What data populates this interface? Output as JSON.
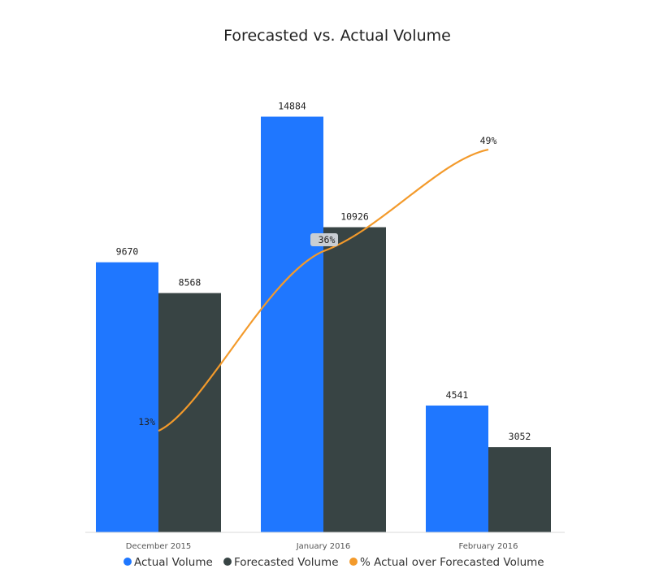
{
  "chart_data": {
    "type": "bar",
    "title": "Forecasted vs. Actual Volume",
    "categories": [
      "December 2015",
      "January 2016",
      "February 2016"
    ],
    "series": [
      {
        "name": "Actual Volume",
        "kind": "bar",
        "color": "#1f77ff",
        "values": [
          9670,
          14884,
          4541
        ],
        "labels": [
          "9670",
          "14884",
          "4541"
        ]
      },
      {
        "name": "Forecasted Volume",
        "kind": "bar",
        "color": "#384444",
        "values": [
          8568,
          10926,
          3052
        ],
        "labels": [
          "8568",
          "10926",
          "3052"
        ]
      },
      {
        "name": "% Actual over Forecasted Volume",
        "kind": "line",
        "color": "#f39a2b",
        "values": [
          13,
          36,
          49
        ],
        "labels": [
          "13%",
          "36%",
          "49%"
        ]
      }
    ],
    "ylim": [
      0,
      16500
    ],
    "line_ylim": [
      0,
      59
    ],
    "xlabel": "",
    "ylabel": "",
    "grid": false,
    "legend_position": "bottom"
  }
}
